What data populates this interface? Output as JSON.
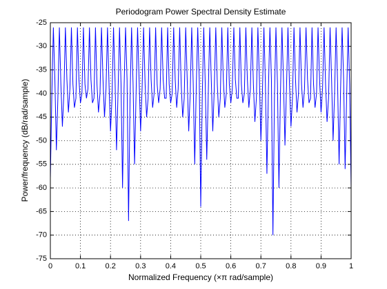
{
  "chart_data": {
    "type": "line",
    "title": "Periodogram Power Spectral Density Estimate",
    "x_label": "Normalized Frequency  (×π rad/sample)",
    "y_label": "Power/frequency  (dB/rad/sample)",
    "xlim": [
      0,
      1
    ],
    "ylim": [
      -75,
      -25
    ],
    "xticks": [
      0,
      0.1,
      0.2,
      0.3,
      0.4,
      0.5,
      0.6,
      0.7,
      0.8,
      0.9,
      1
    ],
    "yticks": [
      -25,
      -30,
      -35,
      -40,
      -45,
      -50,
      -55,
      -60,
      -65,
      -70,
      -75
    ],
    "grid": true,
    "series": [
      {
        "color": "#0000ff",
        "x": [
          0,
          0.005,
          0.01,
          0.015,
          0.02,
          0.025,
          0.03,
          0.035,
          0.04,
          0.045,
          0.05,
          0.055,
          0.06,
          0.065,
          0.07,
          0.075,
          0.08,
          0.085,
          0.09,
          0.095,
          0.1,
          0.105,
          0.11,
          0.115,
          0.12,
          0.125,
          0.13,
          0.135,
          0.14,
          0.145,
          0.15,
          0.155,
          0.16,
          0.165,
          0.17,
          0.175,
          0.18,
          0.185,
          0.19,
          0.195,
          0.2,
          0.205,
          0.21,
          0.215,
          0.22,
          0.225,
          0.23,
          0.235,
          0.24,
          0.245,
          0.25,
          0.255,
          0.26,
          0.265,
          0.27,
          0.275,
          0.28,
          0.285,
          0.29,
          0.295,
          0.3,
          0.305,
          0.31,
          0.315,
          0.32,
          0.325,
          0.33,
          0.335,
          0.34,
          0.345,
          0.35,
          0.355,
          0.36,
          0.365,
          0.37,
          0.375,
          0.38,
          0.385,
          0.39,
          0.395,
          0.4,
          0.405,
          0.41,
          0.415,
          0.42,
          0.425,
          0.43,
          0.435,
          0.44,
          0.445,
          0.45,
          0.455,
          0.46,
          0.465,
          0.47,
          0.475,
          0.48,
          0.485,
          0.49,
          0.495,
          0.5,
          0.505,
          0.51,
          0.515,
          0.52,
          0.525,
          0.53,
          0.535,
          0.54,
          0.545,
          0.55,
          0.555,
          0.56,
          0.565,
          0.57,
          0.575,
          0.58,
          0.585,
          0.59,
          0.595,
          0.6,
          0.605,
          0.61,
          0.615,
          0.62,
          0.625,
          0.63,
          0.635,
          0.64,
          0.645,
          0.65,
          0.655,
          0.66,
          0.665,
          0.67,
          0.675,
          0.68,
          0.685,
          0.69,
          0.695,
          0.7,
          0.705,
          0.71,
          0.715,
          0.72,
          0.725,
          0.73,
          0.735,
          0.74,
          0.745,
          0.75,
          0.755,
          0.76,
          0.765,
          0.77,
          0.775,
          0.78,
          0.785,
          0.79,
          0.795,
          0.8,
          0.805,
          0.81,
          0.815,
          0.82,
          0.825,
          0.83,
          0.835,
          0.84,
          0.845,
          0.85,
          0.855,
          0.86,
          0.865,
          0.87,
          0.875,
          0.88,
          0.885,
          0.89,
          0.895,
          0.9,
          0.905,
          0.91,
          0.915,
          0.92,
          0.925,
          0.93,
          0.935,
          0.94,
          0.945,
          0.95,
          0.955,
          0.96,
          0.965,
          0.97,
          0.975,
          0.98,
          0.985,
          0.99,
          0.995,
          1
        ],
        "values": [
          -58,
          -40,
          -26,
          -37,
          -52,
          -41,
          -26,
          -38,
          -47,
          -40,
          -26,
          -37,
          -44,
          -39,
          -26,
          -38,
          -43,
          -41,
          -26,
          -37,
          -42,
          -40,
          -26,
          -38,
          -41,
          -39,
          -26,
          -37,
          -42,
          -41,
          -26,
          -38,
          -44,
          -40,
          -26,
          -37,
          -45,
          -39,
          -26,
          -38,
          -48,
          -41,
          -26,
          -37,
          -52,
          -40,
          -26,
          -38,
          -60,
          -39,
          -26,
          -37,
          -67,
          -41,
          -26,
          -38,
          -55,
          -40,
          -26,
          -37,
          -48,
          -39,
          -26,
          -38,
          -45,
          -41,
          -26,
          -37,
          -43,
          -40,
          -26,
          -38,
          -42,
          -39,
          -26,
          -37,
          -41,
          -41,
          -26,
          -38,
          -42,
          -40,
          -26,
          -37,
          -43,
          -39,
          -26,
          -38,
          -45,
          -41,
          -26,
          -37,
          -48,
          -40,
          -26,
          -38,
          -55,
          -39,
          -26,
          -37,
          -64,
          -41,
          -26,
          -38,
          -54,
          -40,
          -26,
          -37,
          -48,
          -39,
          -26,
          -38,
          -45,
          -41,
          -26,
          -37,
          -43,
          -40,
          -26,
          -38,
          -42,
          -39,
          -26,
          -37,
          -41,
          -41,
          -26,
          -38,
          -42,
          -40,
          -26,
          -37,
          -43,
          -39,
          -26,
          -38,
          -46,
          -41,
          -26,
          -37,
          -50,
          -40,
          -26,
          -38,
          -57,
          -39,
          -26,
          -37,
          -70,
          -41,
          -26,
          -38,
          -60,
          -40,
          -26,
          -37,
          -51,
          -39,
          -26,
          -38,
          -47,
          -41,
          -26,
          -37,
          -44,
          -40,
          -26,
          -38,
          -43,
          -39,
          -26,
          -37,
          -42,
          -41,
          -26,
          -38,
          -43,
          -40,
          -26,
          -37,
          -44,
          -39,
          -26,
          -38,
          -46,
          -41,
          -26,
          -37,
          -50,
          -40,
          -26,
          -38,
          -55,
          -39,
          -26,
          -37,
          -56,
          -41,
          -26,
          -38,
          -60
        ]
      }
    ]
  }
}
